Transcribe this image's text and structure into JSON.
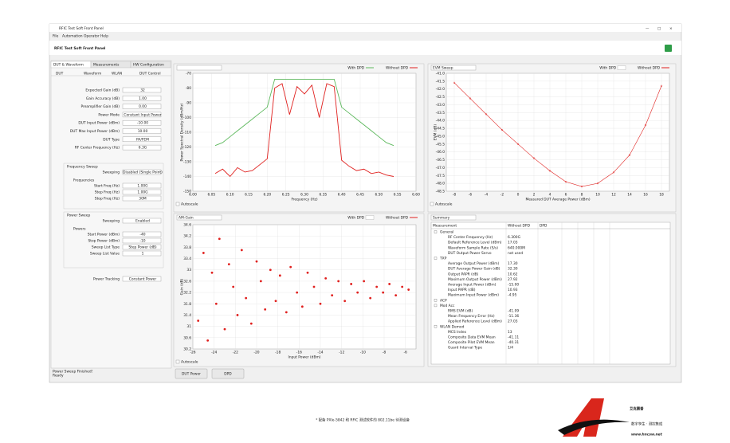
{
  "window": {
    "title": "RFIC Test Soft Front Panel",
    "menu": [
      "File",
      "Automation",
      "Operator",
      "Help"
    ],
    "header": "RFIC Test Soft Front Panel"
  },
  "tabs": [
    "DUT & Waveform",
    "Measurements",
    "HW Configuration"
  ],
  "subtabs": [
    "DUT",
    "Waveform",
    "WLAN",
    "DUT Control"
  ],
  "dut_fields": [
    {
      "label": "Expected Gain (dB)",
      "value": "32"
    },
    {
      "label": "Gain Accuracy (dB)",
      "value": "1.00"
    },
    {
      "label": "Preamplifier Gain (dB)",
      "value": "0.00"
    },
    {
      "label": "Power Mode",
      "value": "Constant Input Power"
    },
    {
      "label": "DUT Input Power (dBm)",
      "value": "-10.00"
    },
    {
      "label": "DUT Max Input Power (dBm)",
      "value": "10.00"
    },
    {
      "label": "DUT Type",
      "value": "PA/FEM"
    },
    {
      "label": "RF Center Frequency (Hz)",
      "value": "6.3G"
    }
  ],
  "frequency_sweep": {
    "title": "Frequency Sweep",
    "sweeping": {
      "label": "Sweeping",
      "value": "Disabled (Single Point)"
    },
    "group": "Frequencies",
    "fields": [
      {
        "label": "Start Freq (Hz)",
        "value": "1.00G"
      },
      {
        "label": "Step Freq (Hz)",
        "value": "1.00G"
      },
      {
        "label": "Stop Freq (Hz)",
        "value": "30M"
      }
    ]
  },
  "power_sweep": {
    "title": "Power Sweep",
    "sweeping": {
      "label": "Sweeping",
      "value": "Enabled"
    },
    "group": "Powers",
    "fields": [
      {
        "label": "Start Power (dBm)",
        "value": "-40"
      },
      {
        "label": "Stop Power (dBm)",
        "value": "-10"
      },
      {
        "label": "Sweep List Type",
        "value": "Step Power (dB)"
      },
      {
        "label": "Sweep List Value",
        "value": "1"
      }
    ]
  },
  "power_tracking": {
    "label": "Power Tracking",
    "value": "Constant Power"
  },
  "status": [
    "Power Sweep Finished!",
    "Ready"
  ],
  "buttons": [
    "DUT Power",
    "DPD"
  ],
  "autoscale": "Autoscale",
  "chart_data": [
    {
      "type": "line",
      "xlabel": "Frequency (Hz)",
      "ylabel": "Power Spectral Density (dBm/Hz)",
      "x": [
        6.06,
        6.08,
        6.1,
        6.12,
        6.14,
        6.16,
        6.18,
        6.2,
        6.22,
        6.24,
        6.26,
        6.28,
        6.3,
        6.32,
        6.34,
        6.36,
        6.38,
        6.4,
        6.42,
        6.44,
        6.46,
        6.48,
        6.5,
        6.52,
        6.54
      ],
      "series": [
        {
          "name": "Without DPD",
          "color": "#e0201e",
          "values": [
            -138,
            -135,
            -140,
            -134,
            -137,
            -136,
            -132,
            -128,
            -80,
            -77,
            -98,
            -79,
            -84,
            -78,
            -100,
            -77,
            -79,
            -129,
            -133,
            -136,
            -135,
            -138,
            -137,
            -139,
            -140
          ]
        },
        {
          "name": "With DPD",
          "color": "#5cb85c",
          "values": [
            -119,
            -117,
            -113,
            -109,
            -105,
            -101,
            -97,
            -93,
            -74,
            -74,
            -74,
            -74,
            -74,
            -74,
            -74,
            -74,
            -74,
            -93,
            -97,
            -101,
            -105,
            -109,
            -113,
            -117,
            -119
          ]
        }
      ],
      "xlim": [
        6,
        6.6
      ],
      "xticks": [
        {
          "value": 6,
          "label": "6.00"
        },
        6.05,
        {
          "value": 6.1,
          "label": "6.10"
        },
        6.15,
        {
          "value": 6.2,
          "label": "6.20"
        },
        6.25,
        {
          "value": 6.3,
          "label": "6.30"
        },
        6.35,
        {
          "value": 6.4,
          "label": "6.40"
        },
        6.45,
        {
          "value": 6.5,
          "label": "6.50"
        },
        6.55,
        {
          "value": 6.6,
          "label": "6.60"
        }
      ],
      "ylim": [
        -150,
        -70
      ],
      "yticks": [
        -150,
        -140,
        -130,
        -120,
        -110,
        -100,
        -90,
        -80,
        -70
      ],
      "grid": true
    },
    {
      "type": "line",
      "selector": "EVM Sweep",
      "xlabel": "Measured DUT Average Power (dBm)",
      "ylabel": "EVM (dB)",
      "x": [
        -8,
        -6,
        -4,
        -2,
        0,
        2,
        4,
        6,
        8,
        10,
        12,
        14,
        16,
        18
      ],
      "series": [
        {
          "name": "Without DPD",
          "color": "#e0201e",
          "values": [
            -41.6,
            -42.6,
            -43.6,
            -44.6,
            -45.5,
            -46.4,
            -47.2,
            -47.9,
            -48.2,
            -48,
            -47.3,
            -46.2,
            -44.3,
            -41.8
          ]
        }
      ],
      "legend_inactive": "With DPD",
      "xlim": [
        -9,
        19
      ],
      "xticks": [
        -8,
        -6,
        -4,
        -2,
        0,
        2,
        4,
        6,
        8,
        10,
        12,
        14,
        16,
        18
      ],
      "ylim": [
        -48.5,
        -41
      ],
      "yticks": [
        -48.5,
        {
          "value": -48,
          "label": "-48.0"
        },
        -47.5,
        {
          "value": -47,
          "label": "-47.0"
        },
        -46.5,
        {
          "value": -46,
          "label": "-46.0"
        },
        -45.5,
        {
          "value": -45,
          "label": "-45.0"
        },
        -44.5,
        {
          "value": -44,
          "label": "-44.0"
        },
        -43.5,
        {
          "value": -43,
          "label": "-43.0"
        },
        -42.5,
        {
          "value": -42,
          "label": "-42.0"
        },
        -41.5,
        {
          "value": -41,
          "label": "-41.0"
        }
      ],
      "grid": true
    },
    {
      "type": "scatter",
      "selector": "AM-Gain",
      "xlabel": "Input Power (dBm)",
      "ylabel": "Gain (dB)",
      "x": [
        -25.5,
        -25,
        -24.6,
        -24.2,
        -23.8,
        -23.5,
        -23,
        -22.6,
        -22.2,
        -21.8,
        -21.4,
        -21,
        -20.5,
        -20,
        -19.6,
        -19.2,
        -18.7,
        -18.2,
        -17.8,
        -17.2,
        -16.8,
        -16.2,
        -15.7,
        -15.2,
        -14.6,
        -14,
        -13.5,
        -12.9,
        -12.3,
        -11.7,
        -11.1,
        -10.5,
        -9.9,
        -9.3,
        -8.7,
        -8.1,
        -7.5,
        -6.9,
        -6.3,
        -5.7
      ],
      "series": [
        {
          "name": "Without DPD",
          "color": "#e0201e",
          "values": [
            31.2,
            33.6,
            30.5,
            32.9,
            31.8,
            34.1,
            30.9,
            33.2,
            32.4,
            31.4,
            33.7,
            32,
            31.1,
            33.3,
            32.6,
            31.6,
            33,
            31.9,
            32.8,
            31.5,
            33.1,
            32.2,
            31.7,
            32.9,
            32.4,
            31.8,
            32.7,
            32.1,
            32.6,
            31.9,
            32.5,
            32.2,
            32.6,
            32,
            32.4,
            32.2,
            32.5,
            32.1,
            32.4,
            32.3
          ]
        }
      ],
      "legend_inactive": "With DPD",
      "xlim": [
        -26,
        -5
      ],
      "xticks": [
        -26,
        -24,
        -22,
        -20,
        -18,
        -16,
        -14,
        -12,
        -10,
        -8,
        -6
      ],
      "ylim": [
        30.2,
        34.6
      ],
      "yticks": [
        30.2,
        30.6,
        31,
        31.4,
        31.8,
        32.2,
        32.6,
        33,
        33.4,
        33.8,
        34.2,
        34.6
      ],
      "grid": true
    }
  ],
  "summary": {
    "title": "Summary",
    "columns": [
      "Measurement",
      "Without DPD",
      "DPD"
    ],
    "rows": [
      [
        "General"
      ],
      [
        "RF Center Frequency (Hz)",
        "6.300G"
      ],
      [
        "Default Reference Level (dBm)",
        "17.03"
      ],
      [
        "Waveform Sample Rate (S/s)",
        "640.000M"
      ],
      [
        "DUT Output Power Servo",
        "not used"
      ],
      [
        "TXP"
      ],
      [
        "Average Output Power (dBm)",
        "17.30"
      ],
      [
        "DUT Average Power Gain (dB)",
        "32.30"
      ],
      [
        "Output PAPR (dB)",
        "10.62"
      ],
      [
        "Maximum Output Power (dBm)",
        "27.92"
      ],
      [
        "Average Input Power (dBm)",
        "-15.00"
      ],
      [
        "Input PAPR (dB)",
        "10.93"
      ],
      [
        "Maximum Input Power (dBm)",
        "-4.95"
      ],
      [
        "ACP"
      ],
      [
        "Mod Acc"
      ],
      [
        "RMS EVM (dB)",
        "-41.09"
      ],
      [
        "Mean Frequency Error (Hz)",
        "-11.36"
      ],
      [
        "Applied Reference Level (dBm)",
        "27.03"
      ],
      [
        "WLAN Demod"
      ],
      [
        "MCS Index",
        "13"
      ],
      [
        "Composite Data EVM Mean",
        "-41.11"
      ],
      [
        "Composite Pilot EVM Mean",
        "-40.31"
      ],
      [
        "Guard Interval Type",
        "1/4"
      ]
    ]
  },
  "caption": "* 配备 PXIe-5842 和 RFIC 测试软件的 802.11be 待测设备",
  "logo": {
    "name": "艾克赛普",
    "tagline": "数字孪生 · 测控集成",
    "url": "www.hncsw.net"
  }
}
